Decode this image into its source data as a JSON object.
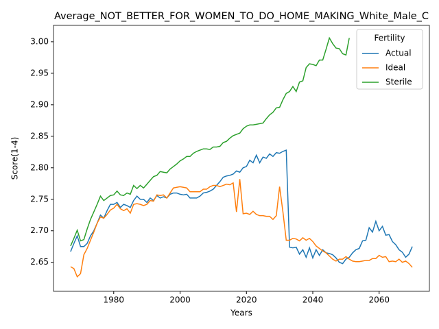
{
  "chart_data": {
    "type": "line",
    "title": "Average_NOT_BETTER_FOR_WOMEN_TO_DO_HOME_MAKING_White_Male_C",
    "x_label": "Years",
    "y_label": "Score(1-4)",
    "legend_title": "Fertility",
    "legend": "upper right",
    "grid": false,
    "xlim": [
      1961.85,
      2075.15
    ],
    "ylim": [
      2.604,
      3.026
    ],
    "xticks": [
      1980,
      2000,
      2020,
      2040,
      2060
    ],
    "yticks": [
      2.65,
      {
        "value": 2.7,
        "label": "2.70"
      },
      2.75,
      {
        "value": 2.8,
        "label": "2.80"
      },
      2.85,
      {
        "value": 2.9,
        "label": "2.90"
      },
      2.95,
      {
        "value": 3.0,
        "label": "3.00"
      }
    ],
    "x": [
      1967,
      1968,
      1969,
      1970,
      1971,
      1972,
      1973,
      1974,
      1975,
      1976,
      1977,
      1978,
      1979,
      1980,
      1981,
      1982,
      1983,
      1984,
      1985,
      1986,
      1987,
      1988,
      1989,
      1990,
      1991,
      1992,
      1993,
      1994,
      1995,
      1996,
      1997,
      1998,
      1999,
      2000,
      2001,
      2002,
      2003,
      2004,
      2005,
      2006,
      2007,
      2008,
      2009,
      2010,
      2011,
      2012,
      2013,
      2014,
      2015,
      2016,
      2017,
      2018,
      2019,
      2020,
      2021,
      2022,
      2023,
      2024,
      2025,
      2026,
      2027,
      2028,
      2029,
      2030,
      2031,
      2032,
      2033,
      2034,
      2035,
      2036,
      2037,
      2038,
      2039,
      2040,
      2041,
      2042,
      2043,
      2044,
      2045,
      2046,
      2047,
      2048,
      2049,
      2050,
      2051,
      2052,
      2053,
      2054,
      2055,
      2056,
      2057,
      2058,
      2059,
      2060,
      2061,
      2062,
      2063,
      2064,
      2065,
      2066,
      2067,
      2068,
      2069,
      2070
    ],
    "series": [
      {
        "name": "Actual",
        "color": "#1f77b4",
        "values": [
          2.667,
          2.68,
          2.692,
          2.675,
          2.675,
          2.68,
          2.692,
          2.7,
          2.712,
          2.725,
          2.72,
          2.732,
          2.742,
          2.742,
          2.745,
          2.737,
          2.742,
          2.74,
          2.737,
          2.748,
          2.755,
          2.75,
          2.75,
          2.745,
          2.752,
          2.748,
          2.756,
          2.752,
          2.754,
          2.752,
          2.758,
          2.76,
          2.76,
          2.758,
          2.757,
          2.758,
          2.752,
          2.752,
          2.752,
          2.755,
          2.76,
          2.761,
          2.763,
          2.766,
          2.772,
          2.778,
          2.785,
          2.787,
          2.788,
          2.79,
          2.795,
          2.793,
          2.8,
          2.802,
          2.812,
          2.808,
          2.82,
          2.808,
          2.817,
          2.815,
          2.822,
          2.818,
          2.824,
          2.823,
          2.826,
          2.828,
          2.674,
          2.673,
          2.674,
          2.663,
          2.67,
          2.658,
          2.673,
          2.657,
          2.67,
          2.661,
          2.67,
          2.665,
          2.664,
          2.662,
          2.657,
          2.65,
          2.648,
          2.655,
          2.658,
          2.665,
          2.67,
          2.672,
          2.684,
          2.685,
          2.705,
          2.698,
          2.715,
          2.7,
          2.707,
          2.693,
          2.694,
          2.683,
          2.678,
          2.67,
          2.666,
          2.658,
          2.663,
          2.675
        ]
      },
      {
        "name": "Ideal",
        "color": "#ff7f0e",
        "values": [
          2.643,
          2.64,
          2.627,
          2.632,
          2.662,
          2.672,
          2.685,
          2.698,
          2.712,
          2.722,
          2.72,
          2.726,
          2.733,
          2.736,
          2.742,
          2.735,
          2.732,
          2.735,
          2.728,
          2.742,
          2.743,
          2.742,
          2.74,
          2.742,
          2.748,
          2.747,
          2.757,
          2.756,
          2.757,
          2.752,
          2.76,
          2.768,
          2.769,
          2.77,
          2.769,
          2.768,
          2.762,
          2.762,
          2.762,
          2.762,
          2.766,
          2.766,
          2.77,
          2.772,
          2.772,
          2.77,
          2.772,
          2.774,
          2.773,
          2.776,
          2.73,
          2.782,
          2.727,
          2.728,
          2.726,
          2.731,
          2.726,
          2.724,
          2.724,
          2.723,
          2.723,
          2.718,
          2.724,
          2.77,
          2.73,
          2.685,
          2.685,
          2.688,
          2.687,
          2.684,
          2.689,
          2.685,
          2.688,
          2.683,
          2.676,
          2.672,
          2.668,
          2.665,
          2.66,
          2.655,
          2.652,
          2.655,
          2.655,
          2.659,
          2.655,
          2.652,
          2.651,
          2.651,
          2.652,
          2.653,
          2.653,
          2.656,
          2.656,
          2.661,
          2.658,
          2.659,
          2.651,
          2.652,
          2.651,
          2.655,
          2.65,
          2.652,
          2.648,
          2.642
        ]
      },
      {
        "name": "Sterile",
        "color": "#2ca02c",
        "values": [
          2.676,
          2.688,
          2.701,
          2.684,
          2.686,
          2.703,
          2.718,
          2.73,
          2.742,
          2.755,
          2.748,
          2.752,
          2.756,
          2.757,
          2.763,
          2.757,
          2.756,
          2.76,
          2.758,
          2.772,
          2.767,
          2.772,
          2.768,
          2.774,
          2.78,
          2.786,
          2.788,
          2.794,
          2.793,
          2.792,
          2.798,
          2.802,
          2.806,
          2.811,
          2.814,
          2.818,
          2.818,
          2.823,
          2.826,
          2.828,
          2.83,
          2.83,
          2.829,
          2.833,
          2.833,
          2.834,
          2.84,
          2.842,
          2.847,
          2.851,
          2.853,
          2.855,
          2.862,
          2.866,
          2.868,
          2.868,
          2.869,
          2.87,
          2.871,
          2.878,
          2.884,
          2.888,
          2.895,
          2.896,
          2.908,
          2.918,
          2.921,
          2.929,
          2.921,
          2.936,
          2.938,
          2.959,
          2.965,
          2.964,
          2.962,
          2.971,
          2.971,
          2.988,
          3.006,
          2.997,
          2.99,
          2.989,
          2.981,
          2.979,
          3.006,
          null,
          null,
          null,
          null,
          null,
          null,
          null,
          null,
          null,
          null,
          null,
          null,
          null,
          null,
          null,
          null,
          null,
          null,
          null
        ]
      }
    ]
  }
}
